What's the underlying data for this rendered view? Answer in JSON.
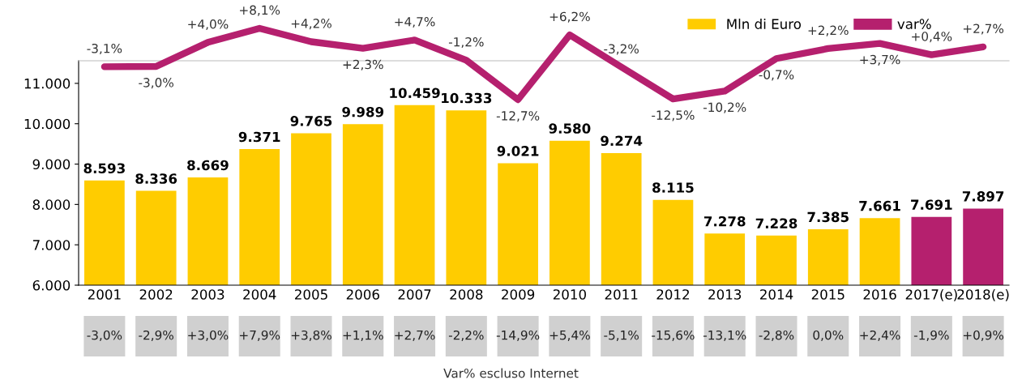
{
  "chart_data": [
    {
      "type": "line",
      "legend": "top right",
      "series": [
        {
          "name": "var%",
          "color": "#b5206e",
          "values": [
            -3.1,
            -3.0,
            4.0,
            8.1,
            4.2,
            2.3,
            4.7,
            -1.2,
            -12.7,
            6.2,
            -3.2,
            -12.5,
            -10.2,
            -0.7,
            2.2,
            3.7,
            0.4,
            2.7
          ],
          "value_labels": [
            "-3,1%",
            "-3,0%",
            "+4,0%",
            "+8,1%",
            "+4,2%",
            "+2,3%",
            "+4,7%",
            "-1,2%",
            "-12,7%",
            "+6,2%",
            "-3,2%",
            "-12,5%",
            "-10,2%",
            "-0,7%",
            "+2,2%",
            "+3,7%",
            "+0,4%",
            "+2,7%"
          ]
        }
      ]
    },
    {
      "type": "bar",
      "legend": "top right",
      "categories": [
        "2001",
        "2002",
        "2003",
        "2004",
        "2005",
        "2006",
        "2007",
        "2008",
        "2009",
        "2010",
        "2011",
        "2012",
        "2013",
        "2014",
        "2015",
        "2016",
        "2017(e)",
        "2018(e)"
      ],
      "ylim": [
        6000,
        11560
      ],
      "yticks": [
        {
          "value": 6000,
          "label": "6.000"
        },
        {
          "value": 7000,
          "label": "7.000"
        },
        {
          "value": 8000,
          "label": "8.000"
        },
        {
          "value": 9000,
          "label": "9.000"
        },
        {
          "value": 10000,
          "label": "10.000"
        },
        {
          "value": 11000,
          "label": "11.000"
        }
      ],
      "series": [
        {
          "name": "Mln di Euro",
          "color": "#ffcc00",
          "colors": [
            "#ffcc00",
            "#ffcc00",
            "#ffcc00",
            "#ffcc00",
            "#ffcc00",
            "#ffcc00",
            "#ffcc00",
            "#ffcc00",
            "#ffcc00",
            "#ffcc00",
            "#ffcc00",
            "#ffcc00",
            "#ffcc00",
            "#ffcc00",
            "#ffcc00",
            "#ffcc00",
            "#b5206e",
            "#b5206e"
          ],
          "values": [
            8593,
            8336,
            8669,
            9371,
            9765,
            9989,
            10459,
            10333,
            9021,
            9580,
            9274,
            8115,
            7278,
            7228,
            7385,
            7661,
            7691,
            7897
          ],
          "value_labels": [
            "8.593",
            "8.336",
            "8.669",
            "9.371",
            "9.765",
            "9.989",
            "10.459",
            "10.333",
            "9.021",
            "9.580",
            "9.274",
            "8.115",
            "7.278",
            "7.228",
            "7.385",
            "7.661",
            "7.691",
            "7.897"
          ]
        }
      ]
    },
    {
      "type": "other",
      "title": "Var% escluso Internet",
      "annotations": [
        "-3,0%",
        "-2,9%",
        "+3,0%",
        "+7,9%",
        "+3,8%",
        "+1,1%",
        "+2,7%",
        "-2,2%",
        "-14,9%",
        "+5,4%",
        "-5,1%",
        "-15,6%",
        "-13,1%",
        "-2,8%",
        "0,0%",
        "+2,4%",
        "-1,9%",
        "+0,9%"
      ]
    }
  ]
}
